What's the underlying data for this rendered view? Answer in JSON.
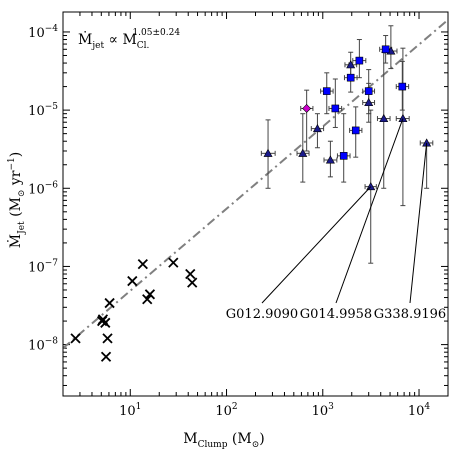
{
  "chart_data": {
    "type": "scatter",
    "x_scale": "log",
    "y_scale": "log",
    "xlim": [
      2,
      20000
    ],
    "ylim": [
      2.2e-09,
      0.00018
    ],
    "xlabel": {
      "main": "M",
      "sub": "Clump",
      "unit": " (M",
      "unit_sub": "⊙",
      "unit_end": ")"
    },
    "ylabel": {
      "main": "Ṁ",
      "sub": "Jet",
      "unit": " (M",
      "unit_sub": "⊙",
      "unit_mid": " yr",
      "unit_sup": "−1",
      "unit_end": ")"
    },
    "x_ticks": [
      {
        "value": 10,
        "base": "10",
        "exp": "1"
      },
      {
        "value": 100,
        "base": "10",
        "exp": "2"
      },
      {
        "value": 1000,
        "base": "10",
        "exp": "3"
      },
      {
        "value": 10000,
        "base": "10",
        "exp": "4"
      }
    ],
    "y_ticks": [
      {
        "value": 1e-08,
        "base": "10",
        "exp": "−8"
      },
      {
        "value": 1e-07,
        "base": "10",
        "exp": "−7"
      },
      {
        "value": 1e-06,
        "base": "10",
        "exp": "−6"
      },
      {
        "value": 1e-05,
        "base": "10",
        "exp": "−5"
      },
      {
        "value": 0.0001,
        "base": "10",
        "exp": "−4"
      }
    ],
    "relation": {
      "lhs": "Ṁ",
      "lhs_sub": "jet",
      "op": " ∝ ",
      "rhs": "M",
      "rhs_sub": "Cl.",
      "rhs_sup": "1.05±0.24"
    },
    "fit_line": {
      "style": "dash-dot",
      "color": "#808080",
      "points": [
        [
          2,
          9e-09
        ],
        [
          20000,
          0.000143
        ]
      ]
    },
    "series": [
      {
        "marker": "x",
        "color": "#000000",
        "points": [
          [
            2.7,
            1.2e-08
          ],
          [
            5.1,
            2e-08
          ],
          [
            5.2,
            2.1e-08
          ],
          [
            5.5,
            1.9e-08
          ],
          [
            5.6,
            7e-09
          ],
          [
            5.8,
            1.2e-08
          ],
          [
            6.1,
            3.4e-08
          ],
          [
            10.5,
            6.5e-08
          ],
          [
            13.5,
            1.07e-07
          ],
          [
            15,
            3.8e-08
          ],
          [
            16,
            4.4e-08
          ],
          [
            28,
            1.12e-07
          ],
          [
            42,
            8e-08
          ],
          [
            44,
            6.2e-08
          ]
        ]
      },
      {
        "marker": "triangle",
        "color": "#1a1a8c",
        "points": [
          {
            "x": 270,
            "y": 2.8e-06,
            "xlo": 230,
            "xhi": 320,
            "ylo": 1e-06,
            "yhi": 7.5e-06
          },
          {
            "x": 620,
            "y": 2.8e-06,
            "xlo": 540,
            "xhi": 720,
            "ylo": 1.2e-06,
            "yhi": 9e-06
          },
          {
            "x": 880,
            "y": 5.8e-06,
            "xlo": 760,
            "xhi": 1020,
            "ylo": 3.3e-06,
            "yhi": 9e-06
          },
          {
            "x": 1200,
            "y": 2.3e-06,
            "xlo": 1030,
            "xhi": 1400,
            "ylo": 1.4e-06,
            "yhi": 4e-06
          },
          {
            "x": 1950,
            "y": 3.8e-05,
            "xlo": 1700,
            "xhi": 2250,
            "ylo": 2.8e-05,
            "yhi": 5.5e-05
          },
          {
            "x": 3000,
            "y": 1.25e-05,
            "xlo": 2600,
            "xhi": 3450,
            "ylo": 7e-06,
            "yhi": 2.2e-05
          },
          {
            "x": 3150,
            "y": 1.05e-06,
            "xlo": 2750,
            "xhi": 3600,
            "ylo": 1.1e-07,
            "yhi": 1e-05
          },
          {
            "x": 4300,
            "y": 7.8e-06,
            "xlo": 3700,
            "xhi": 5000,
            "ylo": 1e-06,
            "yhi": 5.5e-05
          },
          {
            "x": 5100,
            "y": 5.7e-05,
            "xlo": 4400,
            "xhi": 5900,
            "ylo": 3.4e-05,
            "yhi": 0.00012
          },
          {
            "x": 6800,
            "y": 7.8e-06,
            "xlo": 5800,
            "xhi": 7900,
            "ylo": 6e-07,
            "yhi": 6.2e-05
          },
          {
            "x": 12000,
            "y": 3.8e-06,
            "xlo": 10300,
            "xhi": 13900,
            "ylo": 1e-06,
            "yhi": 3.8e-06
          }
        ]
      },
      {
        "marker": "square",
        "color": "#0000ff",
        "points": [
          {
            "x": 1100,
            "y": 1.75e-05,
            "xlo": 950,
            "xhi": 1280,
            "ylo": 9e-06,
            "yhi": 3e-05
          },
          {
            "x": 1350,
            "y": 1.05e-05,
            "xlo": 1160,
            "xhi": 1570,
            "ylo": 6e-06,
            "yhi": 2.5e-05
          },
          {
            "x": 1650,
            "y": 2.6e-06,
            "xlo": 1420,
            "xhi": 1920,
            "ylo": 1.2e-06,
            "yhi": 9e-06
          },
          {
            "x": 1950,
            "y": 2.6e-05,
            "xlo": 1680,
            "xhi": 2270,
            "ylo": 1.7e-05,
            "yhi": 4e-05
          },
          {
            "x": 2400,
            "y": 4.3e-05,
            "xlo": 2050,
            "xhi": 2800,
            "ylo": 2.6e-05,
            "yhi": 8e-05
          },
          {
            "x": 2200,
            "y": 5.5e-06,
            "xlo": 1900,
            "xhi": 2550,
            "ylo": 2.5e-06,
            "yhi": 1.1e-05
          },
          {
            "x": 3000,
            "y": 1.75e-05,
            "xlo": 2600,
            "xhi": 3450,
            "ylo": 9e-06,
            "yhi": 3.3e-05
          },
          {
            "x": 4500,
            "y": 6e-05,
            "xlo": 3900,
            "xhi": 5200,
            "ylo": 4e-05,
            "yhi": 9e-05
          },
          {
            "x": 6700,
            "y": 2e-05,
            "xlo": 5800,
            "xhi": 7800,
            "ylo": 1e-05,
            "yhi": 4.2e-05
          }
        ]
      },
      {
        "marker": "diamond",
        "color": "#cc00cc",
        "points": [
          {
            "x": 680,
            "y": 1.05e-05,
            "xlo": 590,
            "xhi": 790,
            "ylo": 3e-06,
            "yhi": 1.8e-05
          }
        ]
      }
    ],
    "annotations": [
      {
        "text": "G012.9090",
        "x": 3150,
        "y": 1.05e-06
      },
      {
        "text": "G014.9958",
        "x": 6800,
        "y": 7.8e-06
      },
      {
        "text": "G338.9196",
        "x": 12000,
        "y": 3.8e-06
      }
    ]
  }
}
